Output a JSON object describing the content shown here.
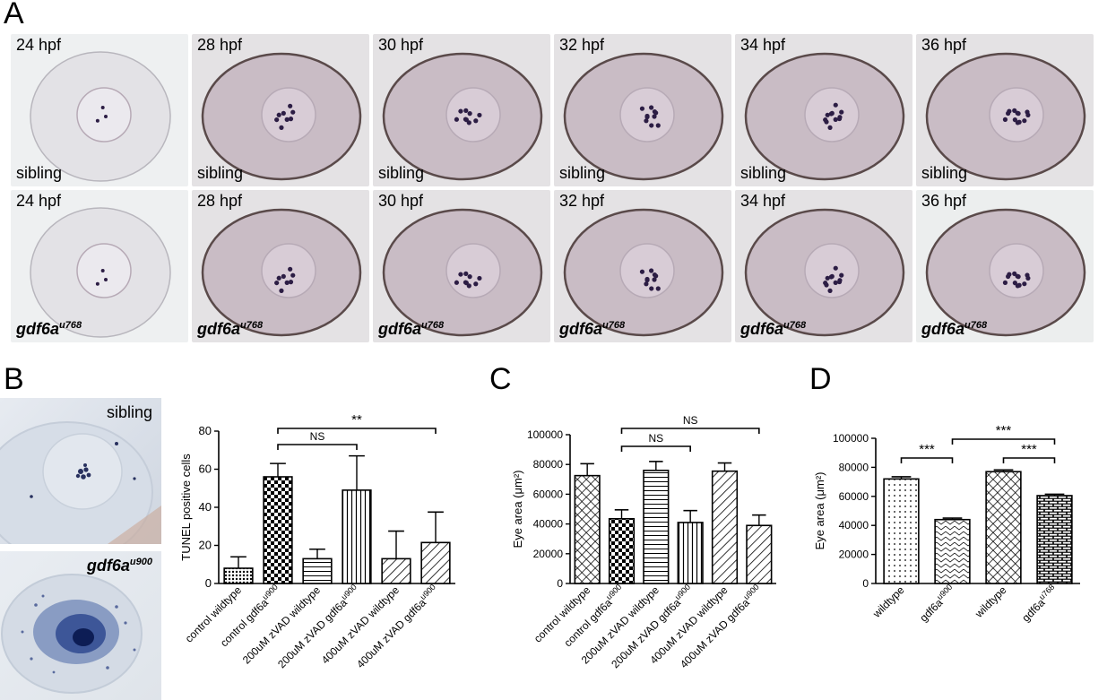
{
  "panel_a": {
    "letter": "A",
    "sibling_row": [
      {
        "time": "24 hpf",
        "genotype": "sibling"
      },
      {
        "time": "28 hpf",
        "genotype": "sibling"
      },
      {
        "time": "30 hpf",
        "genotype": "sibling"
      },
      {
        "time": "32 hpf",
        "genotype": "sibling"
      },
      {
        "time": "34 hpf",
        "genotype": "sibling"
      },
      {
        "time": "36 hpf",
        "genotype": "sibling"
      }
    ],
    "mutant_row": [
      {
        "time": "24 hpf",
        "genotype": "gdf6a",
        "allele": "u768"
      },
      {
        "time": "28 hpf",
        "genotype": "gdf6a",
        "allele": "u768"
      },
      {
        "time": "30 hpf",
        "genotype": "gdf6a",
        "allele": "u768"
      },
      {
        "time": "32 hpf",
        "genotype": "gdf6a",
        "allele": "u768"
      },
      {
        "time": "34 hpf",
        "genotype": "gdf6a",
        "allele": "u768"
      },
      {
        "time": "36 hpf",
        "genotype": "gdf6a",
        "allele": "u768"
      }
    ]
  },
  "panel_b": {
    "letter": "B",
    "photo_top_label": "sibling",
    "photo_bottom_label": "gdf6a",
    "photo_bottom_allele": "u900"
  },
  "panel_c": {
    "letter": "C"
  },
  "panel_d": {
    "letter": "D"
  },
  "chart_data": [
    {
      "id": "B",
      "type": "bar",
      "ylabel": "TUNEL positive cells",
      "ylim": [
        0,
        80
      ],
      "yticks": [
        0,
        20,
        40,
        60,
        80
      ],
      "categories": [
        {
          "label": "control wildtype"
        },
        {
          "label": "control gdf6a",
          "sup": "u900"
        },
        {
          "label": "200uM zVAD wildtype"
        },
        {
          "label": "200uM zVAD gdf6a",
          "sup": "u900"
        },
        {
          "label": "400uM zVAD wildtype"
        },
        {
          "label": "400uM zVAD gdf6a",
          "sup": "u900"
        }
      ],
      "values": [
        8,
        56,
        13,
        49,
        13,
        21.5
      ],
      "errors": [
        6,
        7,
        5,
        18,
        14.5,
        16
      ],
      "patterns": [
        "dots",
        "checker",
        "hlines",
        "vlines",
        "diag",
        "diag"
      ],
      "comparisons": [
        {
          "from": 1,
          "to": 3,
          "label": "NS"
        },
        {
          "from": 1,
          "to": 5,
          "label": "**"
        }
      ]
    },
    {
      "id": "C",
      "type": "bar",
      "ylabel": "Eye area (μm²)",
      "ylim": [
        0,
        100000
      ],
      "yticks": [
        0,
        20000,
        40000,
        60000,
        80000,
        100000
      ],
      "categories": [
        {
          "label": "control wildtype"
        },
        {
          "label": "control gdf6a",
          "sup": "u900"
        },
        {
          "label": "200uM zVAD wildtype"
        },
        {
          "label": "200uM zVAD gdf6a",
          "sup": "u900"
        },
        {
          "label": "400uM zVAD wildtype"
        },
        {
          "label": "400uM zVAD gdf6a",
          "sup": "u900"
        }
      ],
      "values": [
        72500,
        43500,
        76000,
        41000,
        75500,
        39000
      ],
      "errors": [
        8000,
        6000,
        6000,
        8000,
        5500,
        7000
      ],
      "patterns": [
        "crosshatch",
        "checker",
        "hlines",
        "vlines",
        "diag",
        "diag"
      ],
      "comparisons": [
        {
          "from": 1,
          "to": 3,
          "label": "NS"
        },
        {
          "from": 1,
          "to": 5,
          "label": "NS"
        }
      ]
    },
    {
      "id": "D",
      "type": "bar",
      "ylabel": "Eye area (μm²)",
      "ylim": [
        0,
        100000
      ],
      "yticks": [
        0,
        20000,
        40000,
        60000,
        80000,
        100000
      ],
      "categories": [
        {
          "label": "wildtype"
        },
        {
          "label": "gdf6a",
          "sup": "u900"
        },
        {
          "label": "wildtype"
        },
        {
          "label": "gdf6a",
          "sup": "u768"
        }
      ],
      "values": [
        72000,
        44000,
        77000,
        60500
      ],
      "errors": [
        1500,
        1000,
        1200,
        1000
      ],
      "patterns": [
        "vdots",
        "chevron",
        "crosshatch",
        "brick"
      ],
      "comparisons": [
        {
          "from": 0,
          "to": 1,
          "label": "***"
        },
        {
          "from": 1,
          "to": 3,
          "label": "***"
        },
        {
          "from": 2,
          "to": 3,
          "label": "***"
        }
      ]
    }
  ]
}
